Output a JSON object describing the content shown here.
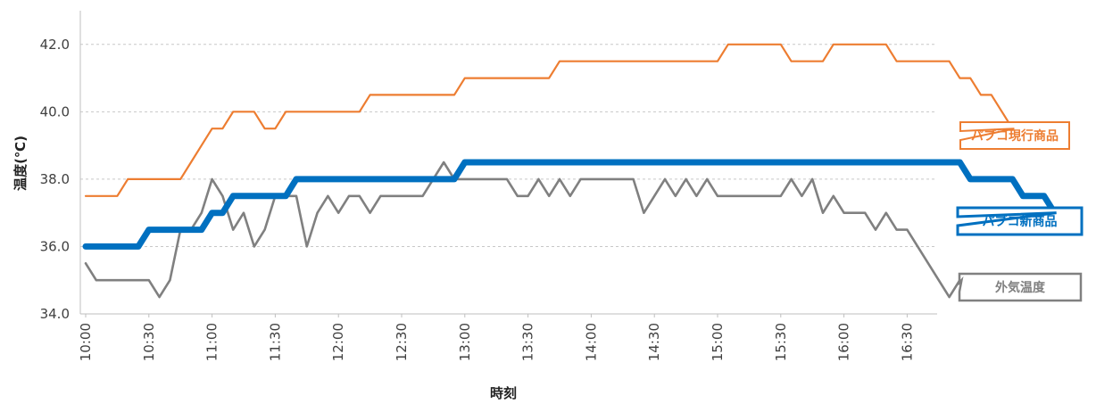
{
  "chart_data": {
    "type": "line",
    "xlabel": "時刻",
    "ylabel": "温度(℃)",
    "ylim": [
      34.0,
      43.0
    ],
    "yticks": [
      "34.0",
      "36.0",
      "38.0",
      "40.0",
      "42.0"
    ],
    "ytick_values": [
      34,
      36,
      38,
      40,
      42
    ],
    "x_tick_labels": [
      "10:00",
      "10:30",
      "11:00",
      "11:30",
      "12:00",
      "12:30",
      "13:00",
      "13:30",
      "14:00",
      "14:30",
      "15:00",
      "15:30",
      "16:00",
      "16:30"
    ],
    "x_start_minutes": 600,
    "x_step_minutes": 5,
    "grid": true,
    "legend": "callouts at right end of each line",
    "series": [
      {
        "name": "パブコ現行商品",
        "color": "#ED7D31",
        "values": [
          37.5,
          37.5,
          37.5,
          37.5,
          38,
          38,
          38,
          38,
          38,
          38,
          38.5,
          39,
          39.5,
          39.5,
          40,
          40,
          40,
          39.5,
          39.5,
          40,
          40,
          40,
          40,
          40,
          40,
          40,
          40,
          40.5,
          40.5,
          40.5,
          40.5,
          40.5,
          40.5,
          40.5,
          40.5,
          40.5,
          41,
          41,
          41,
          41,
          41,
          41,
          41,
          41,
          41,
          41.5,
          41.5,
          41.5,
          41.5,
          41.5,
          41.5,
          41.5,
          41.5,
          41.5,
          41.5,
          41.5,
          41.5,
          41.5,
          41.5,
          41.5,
          41.5,
          42,
          42,
          42,
          42,
          42,
          42,
          41.5,
          41.5,
          41.5,
          41.5,
          42,
          42,
          42,
          42,
          42,
          42,
          41.5,
          41.5,
          41.5,
          41.5,
          41.5,
          41.5,
          41,
          41,
          40.5,
          40.5,
          40,
          39.5
        ]
      },
      {
        "name": "パブコ新商品",
        "color": "#0070C0",
        "values": [
          36,
          36,
          36,
          36,
          36,
          36,
          36.5,
          36.5,
          36.5,
          36.5,
          36.5,
          36.5,
          37,
          37,
          37.5,
          37.5,
          37.5,
          37.5,
          37.5,
          37.5,
          38,
          38,
          38,
          38,
          38,
          38,
          38,
          38,
          38,
          38,
          38,
          38,
          38,
          38,
          38,
          38,
          38.5,
          38.5,
          38.5,
          38.5,
          38.5,
          38.5,
          38.5,
          38.5,
          38.5,
          38.5,
          38.5,
          38.5,
          38.5,
          38.5,
          38.5,
          38.5,
          38.5,
          38.5,
          38.5,
          38.5,
          38.5,
          38.5,
          38.5,
          38.5,
          38.5,
          38.5,
          38.5,
          38.5,
          38.5,
          38.5,
          38.5,
          38.5,
          38.5,
          38.5,
          38.5,
          38.5,
          38.5,
          38.5,
          38.5,
          38.5,
          38.5,
          38.5,
          38.5,
          38.5,
          38.5,
          38.5,
          38.5,
          38.5,
          38,
          38,
          38,
          38,
          38,
          37.5,
          37.5,
          37.5,
          37
        ]
      },
      {
        "name": "外気温度",
        "color": "#808080",
        "values": [
          35.5,
          35,
          35,
          35,
          35,
          35,
          35,
          34.5,
          35,
          36.5,
          36.5,
          37,
          38,
          37.5,
          36.5,
          37,
          36,
          36.5,
          37.5,
          37.5,
          37.5,
          36,
          37,
          37.5,
          37,
          37.5,
          37.5,
          37,
          37.5,
          37.5,
          37.5,
          37.5,
          37.5,
          38,
          38.5,
          38,
          38,
          38,
          38,
          38,
          38,
          37.5,
          37.5,
          38,
          37.5,
          38,
          37.5,
          38,
          38,
          38,
          38,
          38,
          38,
          37,
          37.5,
          38,
          37.5,
          38,
          37.5,
          38,
          37.5,
          37.5,
          37.5,
          37.5,
          37.5,
          37.5,
          37.5,
          38,
          37.5,
          38,
          37,
          37.5,
          37,
          37,
          37,
          36.5,
          37,
          36.5,
          36.5,
          36,
          35.5,
          35,
          34.5,
          35
        ]
      }
    ]
  }
}
